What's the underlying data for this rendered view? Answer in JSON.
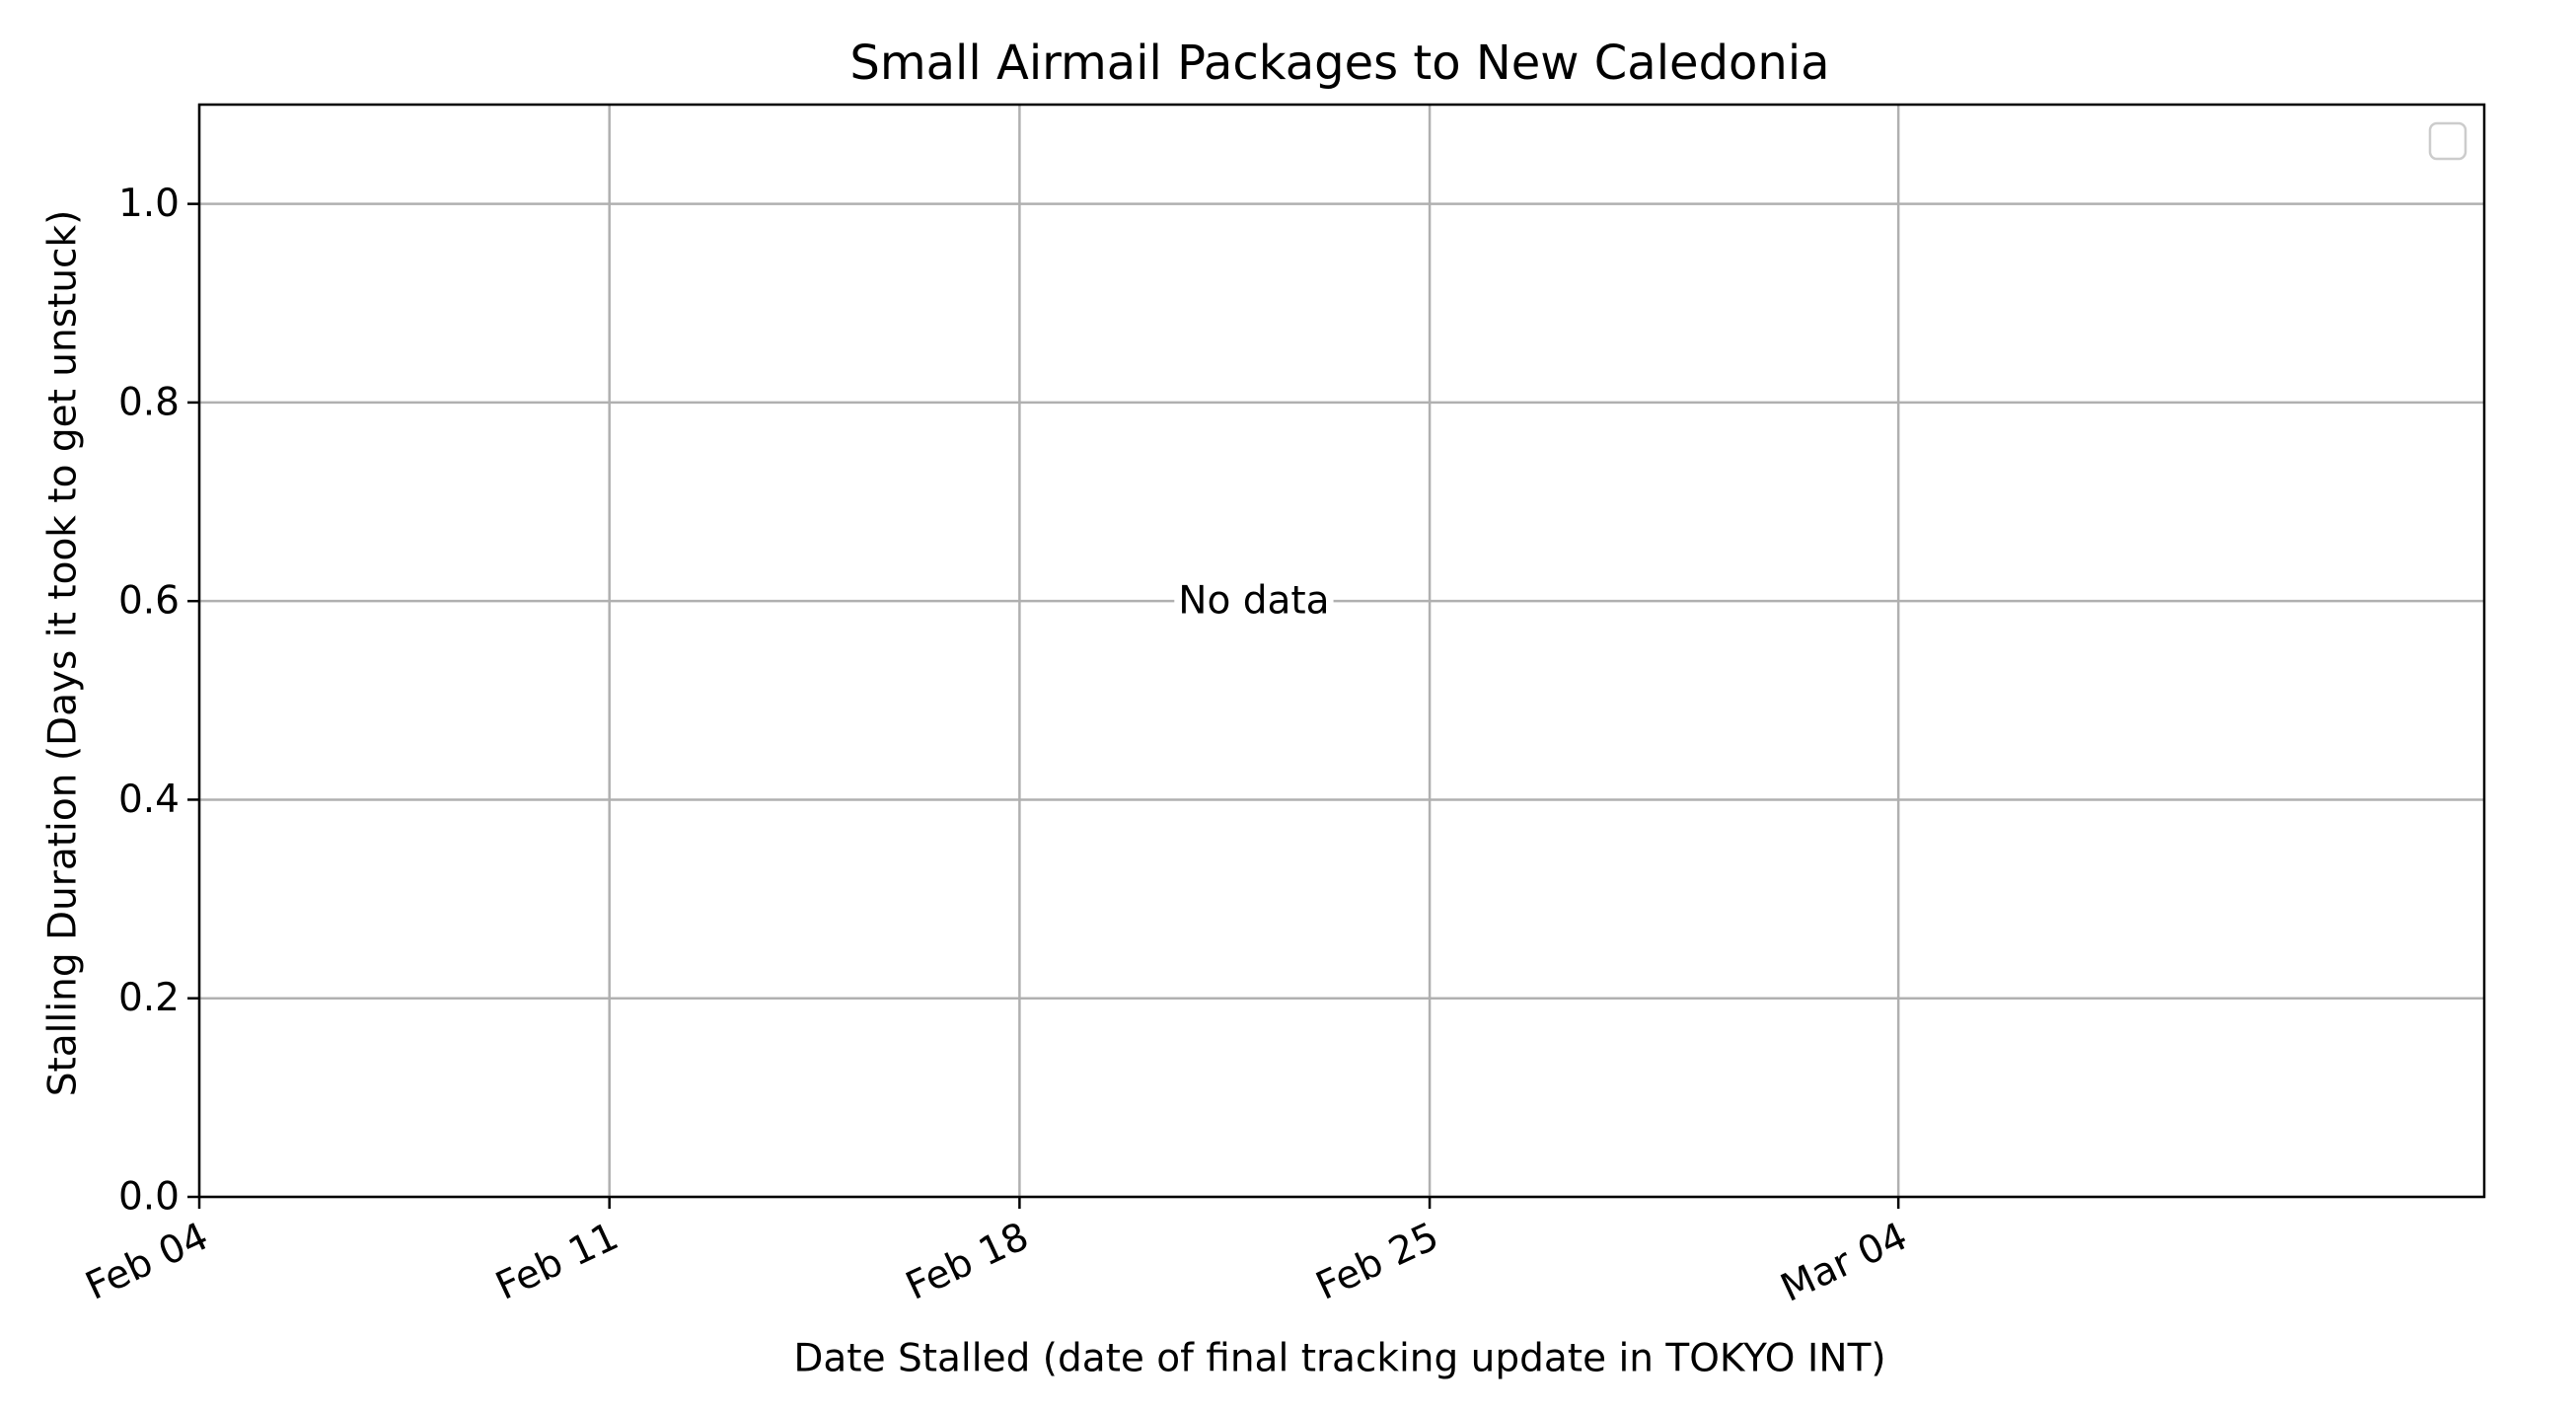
{
  "chart_data": {
    "type": "scatter",
    "title": "Small Airmail Packages to New Caledonia",
    "xlabel": "Date Stalled (date of final tracking update in TOKYO INT)",
    "ylabel": "Stalling Duration (Days it took to get unstuck)",
    "x_axis_type": "date",
    "xlim": [
      "2024-02-04",
      "2024-03-14"
    ],
    "ylim": [
      0,
      1.1
    ],
    "x_ticks": [
      {
        "date": "2024-02-04",
        "label": "Feb 04"
      },
      {
        "date": "2024-02-11",
        "label": "Feb 11"
      },
      {
        "date": "2024-02-18",
        "label": "Feb 18"
      },
      {
        "date": "2024-02-25",
        "label": "Feb 25"
      },
      {
        "date": "2024-03-04",
        "label": "Mar 04"
      }
    ],
    "y_ticks": [
      {
        "value": 0.0,
        "label": "0.0"
      },
      {
        "value": 0.2,
        "label": "0.2"
      },
      {
        "value": 0.4,
        "label": "0.4"
      },
      {
        "value": 0.6,
        "label": "0.6"
      },
      {
        "value": 0.8,
        "label": "0.8"
      },
      {
        "value": 1.0,
        "label": "1.0"
      }
    ],
    "x_tick_rotation": 25,
    "grid": true,
    "legend": {
      "placement": "top-right",
      "entries": []
    },
    "annotation": {
      "text": "No data",
      "x": "2024-02-22",
      "y": 0.6
    },
    "series": []
  },
  "colors": {
    "grid": "#b0b0b0",
    "axes": "#000000",
    "background": "#ffffff",
    "legend_border": "#cccccc"
  }
}
